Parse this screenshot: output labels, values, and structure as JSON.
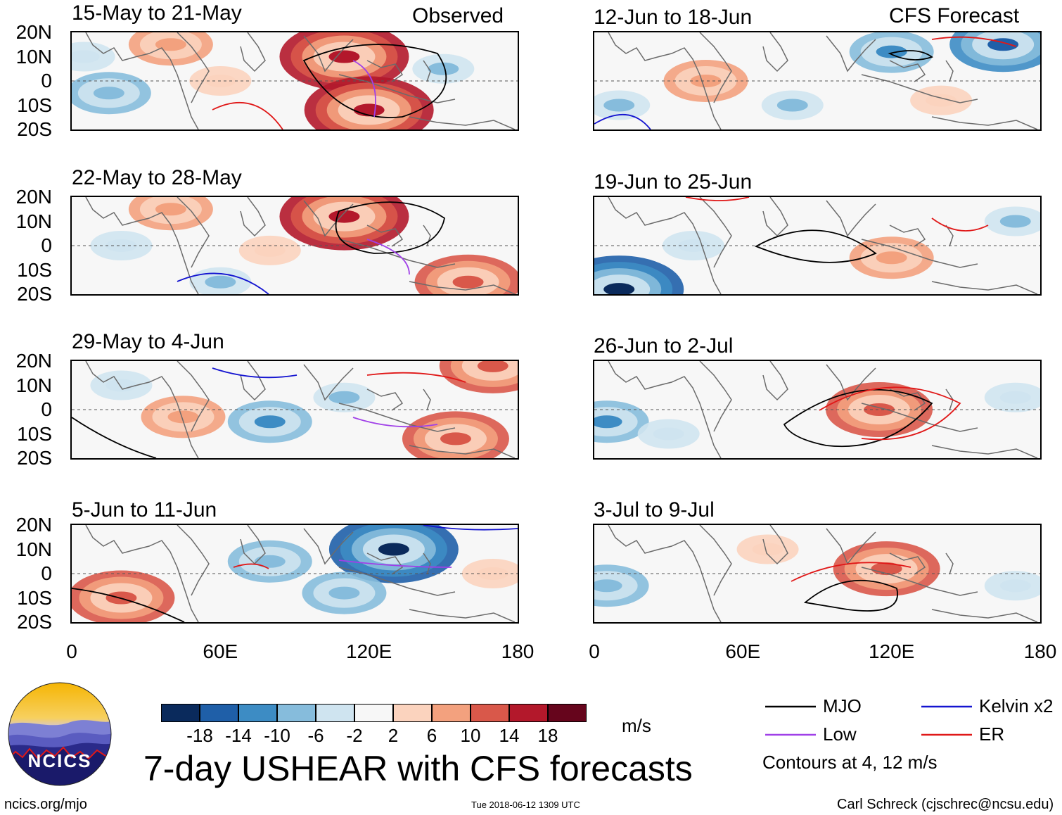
{
  "header": {
    "observed_label": "Observed",
    "forecast_label": "CFS Forecast"
  },
  "panels_left": [
    {
      "title": "15-May to 21-May"
    },
    {
      "title": "22-May to 28-May"
    },
    {
      "title": "29-May to 4-Jun"
    },
    {
      "title": "5-Jun to 11-Jun"
    }
  ],
  "panels_right": [
    {
      "title": "12-Jun to 18-Jun"
    },
    {
      "title": "19-Jun to 25-Jun"
    },
    {
      "title": "26-Jun to 2-Jul"
    },
    {
      "title": "3-Jul to 9-Jul"
    }
  ],
  "axes": {
    "lat_ticks": [
      "20N",
      "10N",
      "0",
      "10S",
      "20S"
    ],
    "lon_ticks": [
      "0",
      "60E",
      "120E",
      "180"
    ]
  },
  "colorbar": {
    "ticks": [
      "-18",
      "-14",
      "-10",
      "-6",
      "-2",
      "2",
      "6",
      "10",
      "14",
      "18"
    ],
    "units": "m/s",
    "colors": [
      "#0a2a5c",
      "#1f5fa8",
      "#3d8cc4",
      "#86bcdc",
      "#cfe4f0",
      "#f7f7f7",
      "#fbd3be",
      "#f3a17e",
      "#d9584a",
      "#b3182b",
      "#66051c"
    ]
  },
  "legend": {
    "items": [
      {
        "label": "MJO",
        "color": "#000000"
      },
      {
        "label": "Kelvin x2",
        "color": "#1414d0"
      },
      {
        "label": "Low",
        "color": "#a040e8"
      },
      {
        "label": "ER",
        "color": "#e01818"
      }
    ],
    "note": "Contours at 4, 12 m/s"
  },
  "title": "7-day USHEAR with CFS forecasts",
  "logo_text": "NCICS",
  "footer": {
    "url": "ncics.org/mjo",
    "timestamp": "Tue 2018-06-12 1309 UTC",
    "credit": "Carl Schreck (cjschrec@ncsu.edu)"
  },
  "chart_data": {
    "type": "heatmap",
    "variable": "7-day USHEAR anomaly",
    "units": "m/s",
    "x_range": [
      0,
      180
    ],
    "y_range": [
      -20,
      20
    ],
    "contour_levels": [
      4,
      12
    ],
    "panels": [
      {
        "period": "15-May to 21-May",
        "source": "Observed",
        "blobs": [
          {
            "lon": 110,
            "lat": 10,
            "value": 18
          },
          {
            "lon": 120,
            "lat": -12,
            "value": 16
          },
          {
            "lon": 40,
            "lat": 15,
            "value": 8
          },
          {
            "lon": 60,
            "lat": 0,
            "value": 6
          },
          {
            "lon": 150,
            "lat": 5,
            "value": -6
          },
          {
            "lon": 15,
            "lat": -5,
            "value": -8
          },
          {
            "lon": 5,
            "lat": 10,
            "value": -4
          }
        ]
      },
      {
        "period": "22-May to 28-May",
        "source": "Observed",
        "blobs": [
          {
            "lon": 110,
            "lat": 12,
            "value": 18
          },
          {
            "lon": 160,
            "lat": -15,
            "value": 14
          },
          {
            "lon": 40,
            "lat": 15,
            "value": 10
          },
          {
            "lon": 80,
            "lat": -2,
            "value": 5
          },
          {
            "lon": 20,
            "lat": 0,
            "value": -4
          },
          {
            "lon": 60,
            "lat": -15,
            "value": -6
          }
        ]
      },
      {
        "period": "29-May to 4-Jun",
        "source": "Observed",
        "blobs": [
          {
            "lon": 80,
            "lat": -5,
            "value": -10
          },
          {
            "lon": 110,
            "lat": 5,
            "value": -6
          },
          {
            "lon": 155,
            "lat": -12,
            "value": 12
          },
          {
            "lon": 170,
            "lat": 18,
            "value": 14
          },
          {
            "lon": 45,
            "lat": -3,
            "value": 8
          },
          {
            "lon": 20,
            "lat": 10,
            "value": -4
          }
        ]
      },
      {
        "period": "5-Jun to 11-Jun",
        "source": "Observed",
        "blobs": [
          {
            "lon": 130,
            "lat": 10,
            "value": -18
          },
          {
            "lon": 80,
            "lat": 5,
            "value": -8
          },
          {
            "lon": 20,
            "lat": -10,
            "value": 14
          },
          {
            "lon": 170,
            "lat": 0,
            "value": 6
          },
          {
            "lon": 110,
            "lat": -8,
            "value": -8
          }
        ]
      },
      {
        "period": "12-Jun to 18-Jun",
        "source": "CFS Forecast",
        "blobs": [
          {
            "lon": 165,
            "lat": 15,
            "value": -14
          },
          {
            "lon": 120,
            "lat": 12,
            "value": -10
          },
          {
            "lon": 45,
            "lat": 0,
            "value": 8
          },
          {
            "lon": 140,
            "lat": -8,
            "value": 6
          },
          {
            "lon": 80,
            "lat": -10,
            "value": -6
          },
          {
            "lon": 10,
            "lat": -10,
            "value": -6
          }
        ]
      },
      {
        "period": "19-Jun to 25-Jun",
        "source": "CFS Forecast",
        "blobs": [
          {
            "lon": 10,
            "lat": -18,
            "value": -18
          },
          {
            "lon": 120,
            "lat": -5,
            "value": 8
          },
          {
            "lon": 170,
            "lat": 10,
            "value": -6
          },
          {
            "lon": 40,
            "lat": 0,
            "value": -4
          }
        ]
      },
      {
        "period": "26-Jun to 2-Jul",
        "source": "CFS Forecast",
        "blobs": [
          {
            "lon": 115,
            "lat": 0,
            "value": 12
          },
          {
            "lon": 5,
            "lat": -5,
            "value": -10
          },
          {
            "lon": 30,
            "lat": -10,
            "value": -4
          },
          {
            "lon": 170,
            "lat": 5,
            "value": -2
          }
        ]
      },
      {
        "period": "3-Jul to 9-Jul",
        "source": "CFS Forecast",
        "blobs": [
          {
            "lon": 118,
            "lat": 2,
            "value": 12
          },
          {
            "lon": 5,
            "lat": -5,
            "value": -8
          },
          {
            "lon": 70,
            "lat": 10,
            "value": 4
          },
          {
            "lon": 170,
            "lat": -5,
            "value": -4
          }
        ]
      }
    ]
  }
}
